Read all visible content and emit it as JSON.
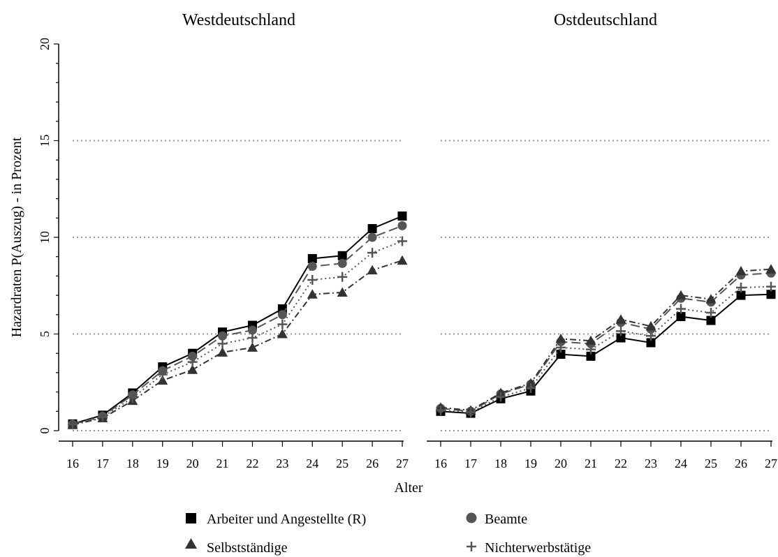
{
  "chart_data": {
    "type": "line",
    "ylabel": "Hazardraten P(Auszug) - in Prozent",
    "xlabel": "Alter",
    "x": [
      16,
      17,
      18,
      19,
      20,
      21,
      22,
      23,
      24,
      25,
      26,
      27
    ],
    "ylim": [
      0,
      20
    ],
    "yticks": [
      0,
      5,
      10,
      15,
      20
    ],
    "gridlines": [
      0,
      5,
      10,
      15
    ],
    "legend_position": "bottom",
    "series_styles": [
      {
        "marker": "square",
        "color": "#000000",
        "dash": "solid"
      },
      {
        "marker": "circle",
        "color": "#555555",
        "dash": "longdash"
      },
      {
        "marker": "triangle",
        "color": "#333333",
        "dash": "dashdot"
      },
      {
        "marker": "plus",
        "color": "#555555",
        "dash": "dotted"
      }
    ],
    "panels": [
      {
        "title": "Westdeutschland",
        "series": [
          {
            "name": "Arbeiter und Angestellte (R)",
            "values": [
              0.35,
              0.8,
              1.95,
              3.3,
              4.0,
              5.1,
              5.45,
              6.3,
              8.9,
              9.05,
              10.45,
              11.1
            ]
          },
          {
            "name": "Beamte",
            "values": [
              0.33,
              0.75,
              1.85,
              3.1,
              3.85,
              4.9,
              5.2,
              6.0,
              8.5,
              8.65,
              10.0,
              10.6
            ]
          },
          {
            "name": "Selbstständige",
            "values": [
              0.3,
              0.65,
              1.55,
              2.6,
              3.15,
              4.05,
              4.3,
              5.0,
              7.05,
              7.15,
              8.3,
              8.8
            ]
          },
          {
            "name": "Nichterwerbstätige",
            "values": [
              0.32,
              0.7,
              1.7,
              2.9,
              3.55,
              4.5,
              4.8,
              5.5,
              7.8,
              7.95,
              9.2,
              9.8
            ]
          }
        ]
      },
      {
        "title": "Ostdeutschland",
        "series": [
          {
            "name": "Arbeiter und Angestellte (R)",
            "values": [
              1.0,
              0.9,
              1.65,
              2.05,
              3.95,
              3.85,
              4.8,
              4.55,
              5.9,
              5.7,
              7.0,
              7.05
            ]
          },
          {
            "name": "Beamte",
            "values": [
              1.15,
              1.0,
              1.9,
              2.4,
              4.6,
              4.5,
              5.6,
              5.25,
              6.85,
              6.65,
              8.05,
              8.15
            ]
          },
          {
            "name": "Selbstständige",
            "values": [
              1.2,
              1.05,
              1.95,
              2.45,
              4.75,
              4.65,
              5.75,
              5.4,
              7.0,
              6.8,
              8.25,
              8.35
            ]
          },
          {
            "name": "Nichterwerbstätige",
            "values": [
              1.05,
              0.95,
              1.75,
              2.2,
              4.3,
              4.2,
              5.15,
              4.9,
              6.3,
              6.1,
              7.4,
              7.45
            ]
          }
        ]
      }
    ]
  }
}
